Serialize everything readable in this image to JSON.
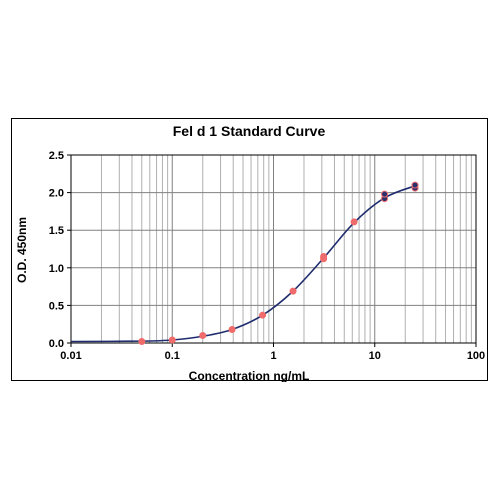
{
  "chart_data": {
    "type": "scatter",
    "title": "Fel d 1 Standard Curve",
    "xlabel": "Concentration ng/mL",
    "ylabel": "O.D. 450nm",
    "x_scale": "log",
    "xlim": [
      0.01,
      100
    ],
    "ylim": [
      0,
      2.5
    ],
    "x_tick_labels": [
      "0.01",
      "0.1",
      "1",
      "10",
      "100"
    ],
    "y_tick_labels": [
      "0.0",
      "0.5",
      "1.0",
      "1.5",
      "2.0",
      "2.5"
    ],
    "grid": true,
    "legend": "none",
    "series": [
      {
        "points": [
          {
            "x": 0.05,
            "y": 0.02
          },
          {
            "x": 0.1,
            "y": 0.04
          },
          {
            "x": 0.2,
            "y": 0.1
          },
          {
            "x": 0.39,
            "y": 0.18
          },
          {
            "x": 0.78,
            "y": 0.37
          },
          {
            "x": 1.56,
            "y": 0.69
          },
          {
            "x": 3.125,
            "y": 1.12
          },
          {
            "x": 3.125,
            "y": 1.15
          },
          {
            "x": 6.25,
            "y": 1.61
          },
          {
            "x": 12.5,
            "y": 1.92
          },
          {
            "x": 12.5,
            "y": 1.98
          },
          {
            "x": 25,
            "y": 2.06
          },
          {
            "x": 25,
            "y": 2.1
          }
        ]
      },
      {
        "type": "line",
        "points": [
          {
            "x": 0.01,
            "y": 0.02
          },
          {
            "x": 0.05,
            "y": 0.025
          },
          {
            "x": 0.1,
            "y": 0.04
          },
          {
            "x": 0.2,
            "y": 0.09
          },
          {
            "x": 0.39,
            "y": 0.18
          },
          {
            "x": 0.78,
            "y": 0.37
          },
          {
            "x": 1.56,
            "y": 0.69
          },
          {
            "x": 3.125,
            "y": 1.13
          },
          {
            "x": 6.25,
            "y": 1.6
          },
          {
            "x": 12.5,
            "y": 1.93
          },
          {
            "x": 25,
            "y": 2.09
          }
        ]
      }
    ],
    "colors": {
      "marker_fill": "#f06b6b",
      "marker_dark": "#2a2f6e",
      "curve": "#1f2d6e",
      "grid": "#b0b0b0"
    }
  }
}
